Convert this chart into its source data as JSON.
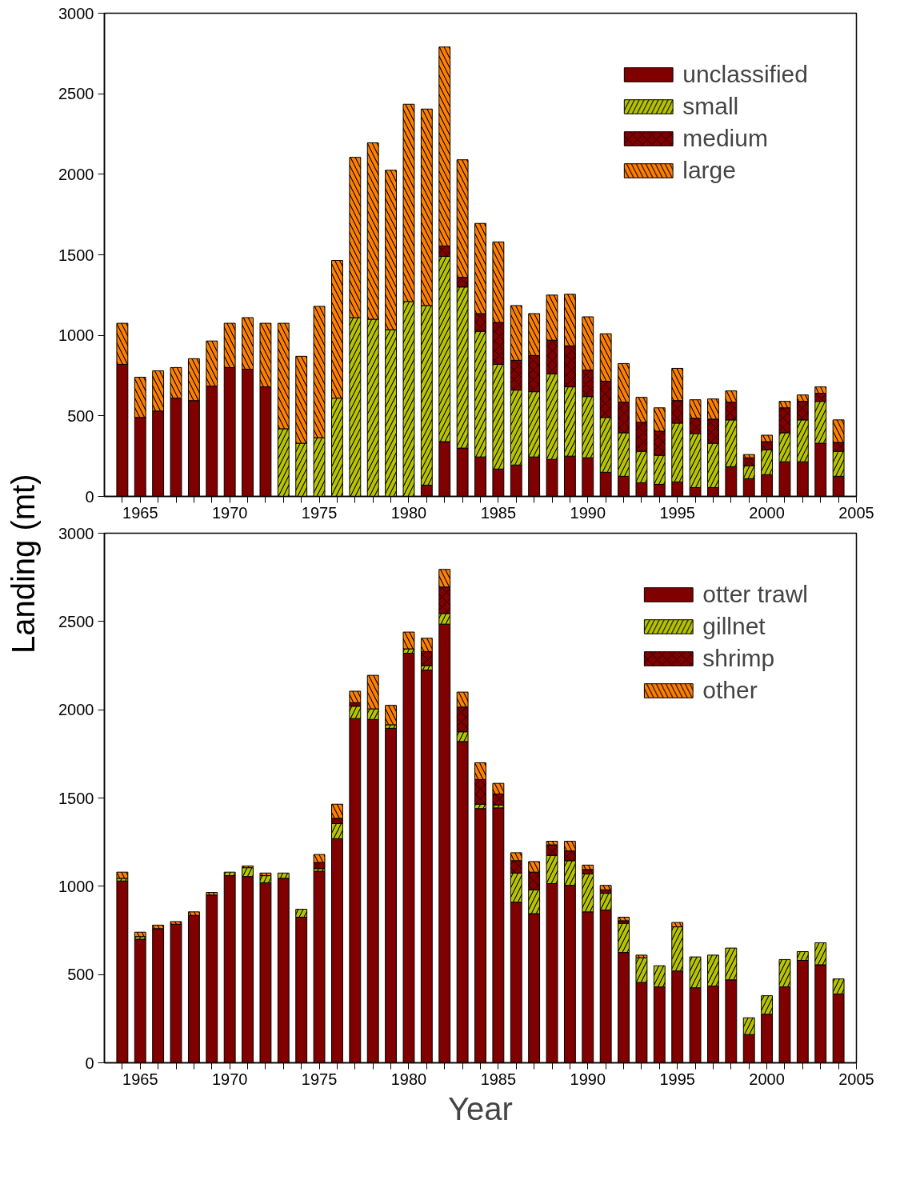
{
  "chart_data": [
    {
      "type": "bar",
      "stacked": true,
      "ylabel": "Landing (mt)",
      "legend": "top right",
      "grid": false,
      "x": [
        1964,
        1965,
        1966,
        1967,
        1968,
        1969,
        1970,
        1971,
        1972,
        1973,
        1974,
        1975,
        1976,
        1977,
        1978,
        1979,
        1980,
        1981,
        1982,
        1983,
        1984,
        1985,
        1986,
        1987,
        1988,
        1989,
        1990,
        1991,
        1992,
        1993,
        1994,
        1995,
        1996,
        1997,
        1998,
        1999,
        2000,
        2001,
        2002,
        2003,
        2004
      ],
      "xlim": [
        1963,
        2005
      ],
      "ylim": [
        0,
        3000
      ],
      "yticks": [
        0,
        500,
        1000,
        1500,
        2000,
        2500,
        3000
      ],
      "xticks": [
        {
          "value": 1964,
          "label": null
        },
        1965,
        {
          "value": 1966,
          "label": null
        },
        {
          "value": 1967,
          "label": null
        },
        {
          "value": 1968,
          "label": null
        },
        {
          "value": 1969,
          "label": null
        },
        1970,
        {
          "value": 1971,
          "label": null
        },
        {
          "value": 1972,
          "label": null
        },
        {
          "value": 1973,
          "label": null
        },
        {
          "value": 1974,
          "label": null
        },
        1975,
        {
          "value": 1976,
          "label": null
        },
        {
          "value": 1977,
          "label": null
        },
        {
          "value": 1978,
          "label": null
        },
        {
          "value": 1979,
          "label": null
        },
        1980,
        {
          "value": 1981,
          "label": null
        },
        {
          "value": 1982,
          "label": null
        },
        {
          "value": 1983,
          "label": null
        },
        {
          "value": 1984,
          "label": null
        },
        1985,
        {
          "value": 1986,
          "label": null
        },
        {
          "value": 1987,
          "label": null
        },
        {
          "value": 1988,
          "label": null
        },
        {
          "value": 1989,
          "label": null
        },
        1990,
        {
          "value": 1991,
          "label": null
        },
        {
          "value": 1992,
          "label": null
        },
        {
          "value": 1993,
          "label": null
        },
        {
          "value": 1994,
          "label": null
        },
        1995,
        {
          "value": 1996,
          "label": null
        },
        {
          "value": 1997,
          "label": null
        },
        {
          "value": 1998,
          "label": null
        },
        {
          "value": 1999,
          "label": null
        },
        2000,
        {
          "value": 2001,
          "label": null
        },
        {
          "value": 2002,
          "label": null
        },
        {
          "value": 2003,
          "label": null
        },
        {
          "value": 2004,
          "label": null
        },
        2005
      ],
      "series": [
        {
          "name": "unclassified",
          "color": "#800000",
          "values": [
            820,
            490,
            530,
            610,
            595,
            685,
            800,
            790,
            680,
            0,
            0,
            0,
            0,
            0,
            0,
            0,
            0,
            70,
            340,
            300,
            245,
            170,
            195,
            245,
            230,
            250,
            240,
            150,
            125,
            85,
            75,
            90,
            55,
            55,
            185,
            110,
            135,
            215,
            215,
            330,
            125
          ]
        },
        {
          "name": "small",
          "color": "#b8c400",
          "values": [
            0,
            0,
            0,
            0,
            0,
            0,
            0,
            0,
            0,
            420,
            330,
            365,
            610,
            1110,
            1100,
            1035,
            1210,
            1115,
            1150,
            1000,
            780,
            650,
            465,
            405,
            530,
            430,
            380,
            340,
            270,
            195,
            180,
            365,
            335,
            275,
            290,
            80,
            155,
            180,
            260,
            260,
            155
          ]
        },
        {
          "name": "medium",
          "color": "#800000",
          "values": [
            0,
            0,
            0,
            0,
            0,
            0,
            0,
            0,
            0,
            0,
            0,
            0,
            0,
            0,
            0,
            0,
            0,
            0,
            65,
            60,
            110,
            260,
            185,
            225,
            210,
            255,
            165,
            225,
            190,
            180,
            150,
            140,
            95,
            150,
            110,
            50,
            50,
            155,
            115,
            50,
            55
          ]
        },
        {
          "name": "large",
          "color": "#ff8000",
          "values": [
            255,
            250,
            250,
            190,
            260,
            280,
            275,
            320,
            395,
            655,
            540,
            815,
            855,
            995,
            1095,
            990,
            1225,
            1220,
            1235,
            730,
            560,
            500,
            340,
            260,
            280,
            320,
            330,
            295,
            240,
            155,
            145,
            200,
            115,
            125,
            70,
            20,
            40,
            40,
            40,
            40,
            140
          ]
        }
      ]
    },
    {
      "type": "bar",
      "stacked": true,
      "xlabel": "Year",
      "legend": "top right",
      "grid": false,
      "x": [
        1964,
        1965,
        1966,
        1967,
        1968,
        1969,
        1970,
        1971,
        1972,
        1973,
        1974,
        1975,
        1976,
        1977,
        1978,
        1979,
        1980,
        1981,
        1982,
        1983,
        1984,
        1985,
        1986,
        1987,
        1988,
        1989,
        1990,
        1991,
        1992,
        1993,
        1994,
        1995,
        1996,
        1997,
        1998,
        1999,
        2000,
        2001,
        2002,
        2003,
        2004
      ],
      "xlim": [
        1963,
        2005
      ],
      "ylim": [
        0,
        3000
      ],
      "yticks": [
        0,
        500,
        1000,
        1500,
        2000,
        2500,
        3000
      ],
      "xticks": [
        {
          "value": 1964,
          "label": null
        },
        1965,
        {
          "value": 1966,
          "label": null
        },
        {
          "value": 1967,
          "label": null
        },
        {
          "value": 1968,
          "label": null
        },
        {
          "value": 1969,
          "label": null
        },
        1970,
        {
          "value": 1971,
          "label": null
        },
        {
          "value": 1972,
          "label": null
        },
        {
          "value": 1973,
          "label": null
        },
        {
          "value": 1974,
          "label": null
        },
        1975,
        {
          "value": 1976,
          "label": null
        },
        {
          "value": 1977,
          "label": null
        },
        {
          "value": 1978,
          "label": null
        },
        {
          "value": 1979,
          "label": null
        },
        1980,
        {
          "value": 1981,
          "label": null
        },
        {
          "value": 1982,
          "label": null
        },
        {
          "value": 1983,
          "label": null
        },
        {
          "value": 1984,
          "label": null
        },
        1985,
        {
          "value": 1986,
          "label": null
        },
        {
          "value": 1987,
          "label": null
        },
        {
          "value": 1988,
          "label": null
        },
        {
          "value": 1989,
          "label": null
        },
        1990,
        {
          "value": 1991,
          "label": null
        },
        {
          "value": 1992,
          "label": null
        },
        {
          "value": 1993,
          "label": null
        },
        {
          "value": 1994,
          "label": null
        },
        1995,
        {
          "value": 1996,
          "label": null
        },
        {
          "value": 1997,
          "label": null
        },
        {
          "value": 1998,
          "label": null
        },
        {
          "value": 1999,
          "label": null
        },
        2000,
        {
          "value": 2001,
          "label": null
        },
        {
          "value": 2002,
          "label": null
        },
        {
          "value": 2003,
          "label": null
        },
        {
          "value": 2004,
          "label": null
        },
        2005
      ],
      "series": [
        {
          "name": "otter trawl",
          "color": "#800000",
          "values": [
            1030,
            700,
            760,
            785,
            835,
            950,
            1060,
            1055,
            1020,
            1045,
            825,
            1085,
            1270,
            1950,
            1945,
            1895,
            2320,
            2225,
            2485,
            1820,
            1440,
            1444,
            910,
            845,
            1015,
            1005,
            855,
            865,
            625,
            455,
            430,
            520,
            425,
            435,
            470,
            160,
            275,
            430,
            580,
            555,
            390
          ]
        },
        {
          "name": "gillnet",
          "color": "#b8c400",
          "values": [
            15,
            15,
            0,
            0,
            0,
            0,
            20,
            50,
            40,
            30,
            45,
            15,
            85,
            70,
            60,
            20,
            25,
            25,
            60,
            55,
            25,
            16,
            165,
            135,
            160,
            140,
            215,
            95,
            165,
            140,
            120,
            250,
            175,
            175,
            180,
            95,
            105,
            155,
            50,
            125,
            85
          ]
        },
        {
          "name": "shrimp",
          "color": "#800000",
          "values": [
            0,
            0,
            0,
            0,
            0,
            0,
            0,
            0,
            0,
            0,
            0,
            35,
            30,
            20,
            0,
            0,
            0,
            80,
            150,
            140,
            140,
            63,
            70,
            100,
            60,
            55,
            25,
            20,
            15,
            0,
            0,
            0,
            0,
            0,
            0,
            0,
            0,
            0,
            0,
            0,
            0
          ]
        },
        {
          "name": "other",
          "color": "#ff8000",
          "values": [
            35,
            25,
            20,
            15,
            20,
            15,
            0,
            10,
            15,
            0,
            0,
            45,
            80,
            65,
            190,
            110,
            95,
            75,
            100,
            85,
            95,
            60,
            45,
            60,
            20,
            55,
            25,
            25,
            20,
            15,
            0,
            25,
            0,
            0,
            0,
            0,
            0,
            0,
            0,
            0,
            0
          ]
        }
      ]
    }
  ]
}
